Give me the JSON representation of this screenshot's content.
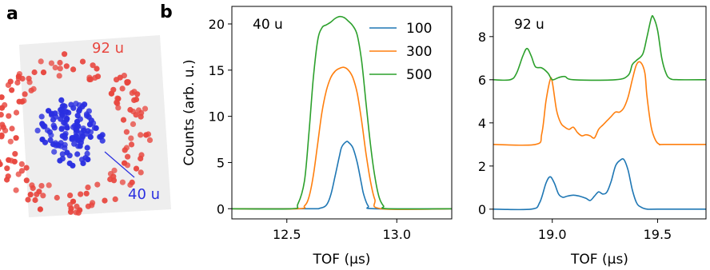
{
  "panel_labels": {
    "a": "a",
    "b": "b"
  },
  "panel_a": {
    "outer_label": "92 u",
    "inner_label": "40 u",
    "outer_color": "#e8473f",
    "inner_color": "#2a2fe0"
  },
  "chart_data": [
    {
      "type": "line",
      "annotation": "40 u",
      "xlabel": "TOF (µs)",
      "ylabel": "Counts (arb. u.)",
      "xlim": [
        12.25,
        13.25
      ],
      "ylim": [
        -1.1,
        21.9
      ],
      "xticks": [
        12.5,
        13.0
      ],
      "xtick_labels": [
        "12.5",
        "13.0"
      ],
      "yticks": [
        0,
        5,
        10,
        15,
        20
      ],
      "ytick_labels": [
        "0",
        "5",
        "10",
        "15",
        "20"
      ],
      "legend_position": "top-right",
      "series": [
        {
          "name": "100",
          "color": "#1f77b4",
          "x": [
            12.25,
            12.6,
            12.65,
            12.68,
            12.7,
            12.72,
            12.74,
            12.75,
            12.77,
            12.78,
            12.8,
            12.82,
            12.84,
            12.85,
            12.87,
            12.9,
            13.25
          ],
          "y": [
            0,
            0,
            0.05,
            0.4,
            1.5,
            3.6,
            5.8,
            6.7,
            7.25,
            7.2,
            6.6,
            5.0,
            2.6,
            1.5,
            0.3,
            0,
            0
          ]
        },
        {
          "name": "300",
          "color": "#ff7f0e",
          "x": [
            12.25,
            12.55,
            12.58,
            12.6,
            12.62,
            12.64,
            12.66,
            12.68,
            12.7,
            12.72,
            12.74,
            12.76,
            12.78,
            12.8,
            12.82,
            12.84,
            12.86,
            12.88,
            12.9,
            12.93,
            13.25
          ],
          "y": [
            0,
            0,
            0.3,
            1.2,
            3.5,
            7.0,
            10.5,
            12.8,
            14.2,
            14.9,
            15.2,
            15.3,
            15.0,
            14.2,
            12.5,
            9.5,
            6.0,
            3.0,
            1.0,
            0,
            0
          ]
        },
        {
          "name": "500",
          "color": "#2ca02c",
          "x": [
            12.25,
            12.52,
            12.55,
            12.58,
            12.6,
            12.62,
            12.64,
            12.66,
            12.68,
            12.7,
            12.72,
            12.74,
            12.76,
            12.78,
            12.8,
            12.82,
            12.84,
            12.86,
            12.88,
            12.9,
            12.92,
            12.94,
            12.96,
            13.25
          ],
          "y": [
            0,
            0,
            0.5,
            3.0,
            8.0,
            14.0,
            18.2,
            19.6,
            19.9,
            20.2,
            20.6,
            20.8,
            20.7,
            20.3,
            19.8,
            18.8,
            16.0,
            11.5,
            7.0,
            3.5,
            1.2,
            0.3,
            0,
            0
          ]
        }
      ]
    },
    {
      "type": "line",
      "annotation": "92 u",
      "xlabel": "TOF (µs)",
      "ylabel": "",
      "xlim": [
        18.72,
        19.73
      ],
      "ylim": [
        -0.45,
        9.4
      ],
      "xticks": [
        19.0,
        19.5
      ],
      "xtick_labels": [
        "19.0",
        "19.5"
      ],
      "yticks": [
        0,
        2,
        4,
        6,
        8
      ],
      "ytick_labels": [
        "0",
        "2",
        "4",
        "6",
        "8"
      ],
      "series": [
        {
          "name": "100",
          "color": "#1f77b4",
          "x": [
            18.72,
            18.9,
            18.94,
            18.97,
            18.99,
            19.01,
            19.03,
            19.05,
            19.07,
            19.1,
            19.13,
            19.16,
            19.18,
            19.2,
            19.22,
            19.24,
            19.26,
            19.28,
            19.3,
            19.32,
            19.34,
            19.36,
            19.38,
            19.4,
            19.42,
            19.45,
            19.5,
            19.73
          ],
          "y": [
            0,
            0,
            0.3,
            1.2,
            1.5,
            1.2,
            0.7,
            0.55,
            0.6,
            0.65,
            0.6,
            0.5,
            0.4,
            0.6,
            0.8,
            0.7,
            0.8,
            1.3,
            2.0,
            2.25,
            2.3,
            1.8,
            0.9,
            0.3,
            0.1,
            0,
            0,
            0
          ]
        },
        {
          "name": "300",
          "color": "#ff7f0e",
          "x": [
            18.72,
            18.92,
            18.95,
            18.97,
            18.99,
            19.0,
            19.02,
            19.04,
            19.06,
            19.08,
            19.1,
            19.12,
            19.14,
            19.16,
            19.18,
            19.2,
            19.22,
            19.24,
            19.26,
            19.28,
            19.3,
            19.32,
            19.34,
            19.36,
            19.38,
            19.4,
            19.42,
            19.44,
            19.45,
            19.47,
            19.49,
            19.51,
            19.53,
            19.73
          ],
          "y": [
            3,
            3,
            3.5,
            5.0,
            6.0,
            5.9,
            4.6,
            4.0,
            3.8,
            3.7,
            3.8,
            3.55,
            3.4,
            3.45,
            3.4,
            3.3,
            3.7,
            3.9,
            4.1,
            4.3,
            4.5,
            4.5,
            4.7,
            5.2,
            6.0,
            6.7,
            6.8,
            6.3,
            5.2,
            3.8,
            3.2,
            3.0,
            3.0,
            3.0
          ]
        },
        {
          "name": "500",
          "color": "#2ca02c",
          "x": [
            18.72,
            18.8,
            18.83,
            18.86,
            18.88,
            18.9,
            18.92,
            18.95,
            18.98,
            19.0,
            19.03,
            19.06,
            19.1,
            19.3,
            19.36,
            19.38,
            19.4,
            19.43,
            19.45,
            19.47,
            19.48,
            19.5,
            19.52,
            19.54,
            19.56,
            19.6,
            19.73
          ],
          "y": [
            6,
            6,
            6.3,
            7.1,
            7.45,
            7.1,
            6.6,
            6.55,
            6.3,
            6.0,
            6.1,
            6.15,
            6.0,
            6.0,
            6.2,
            6.7,
            6.9,
            7.2,
            8.0,
            8.85,
            8.9,
            8.3,
            7.0,
            6.3,
            6.05,
            6.0,
            6.0
          ]
        }
      ]
    }
  ]
}
